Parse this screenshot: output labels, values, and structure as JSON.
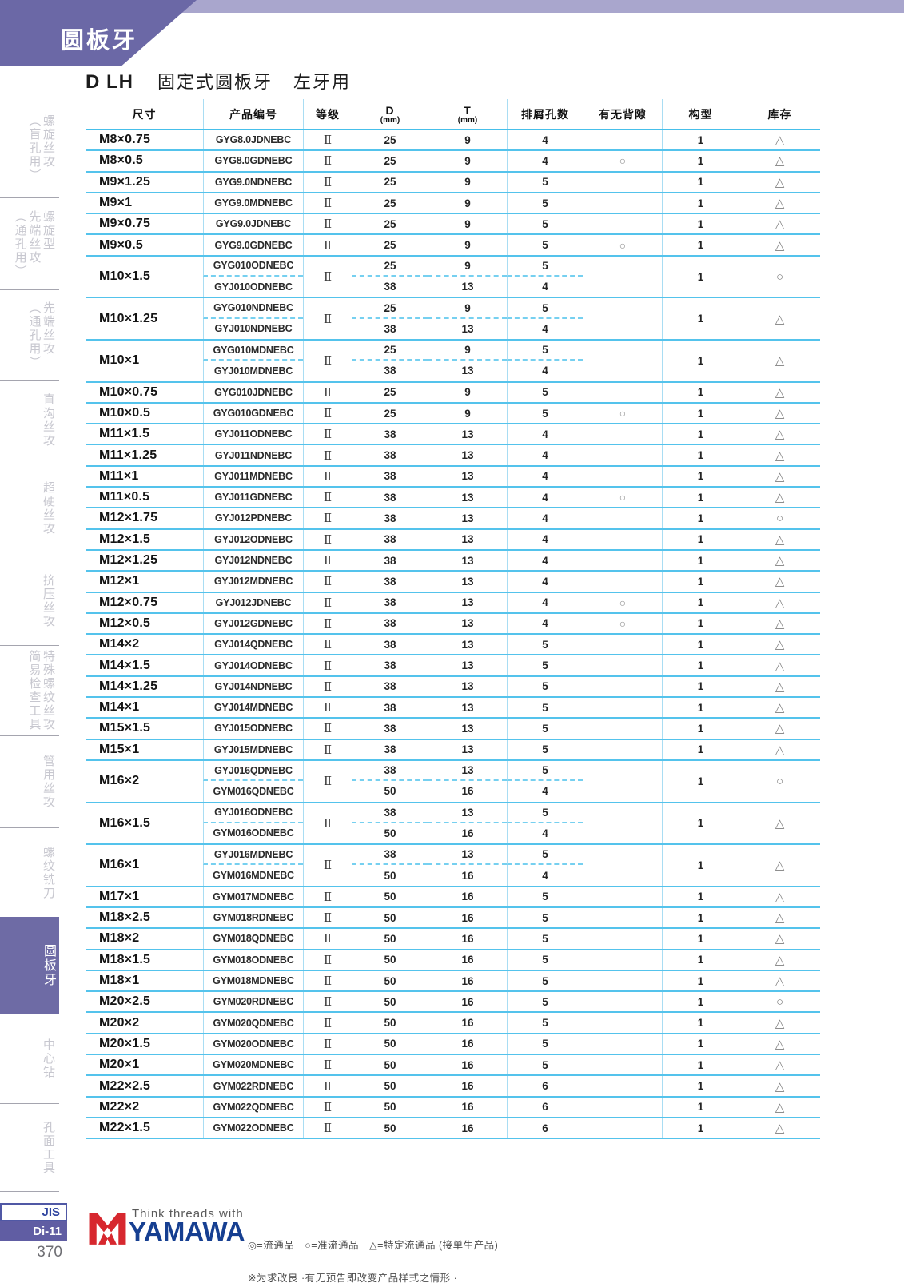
{
  "banner": {
    "tab_title": "圆板牙"
  },
  "page": {
    "title_code": "D LH",
    "title_main": "固定式圆板牙",
    "title_sub": "左牙用"
  },
  "table": {
    "headers": [
      {
        "label": "尺寸"
      },
      {
        "label": "产品编号"
      },
      {
        "label": "等级"
      },
      {
        "label": "D",
        "sub": "(mm)"
      },
      {
        "label": "T",
        "sub": "(mm)"
      },
      {
        "label": "排屑孔数"
      },
      {
        "label": "有无背隙"
      },
      {
        "label": "构型"
      },
      {
        "label": "库存"
      }
    ],
    "rows": [
      {
        "size": "M8×0.75",
        "codes": [
          "GYG8.0JDNEBC"
        ],
        "grade": "Ⅱ",
        "d": [
          "25"
        ],
        "t": [
          "9"
        ],
        "holes": [
          "4"
        ],
        "back": "",
        "config": "1",
        "stock": "△"
      },
      {
        "size": "M8×0.5",
        "codes": [
          "GYG8.0GDNEBC"
        ],
        "grade": "Ⅱ",
        "d": [
          "25"
        ],
        "t": [
          "9"
        ],
        "holes": [
          "4"
        ],
        "back": "○",
        "config": "1",
        "stock": "△"
      },
      {
        "size": "M9×1.25",
        "codes": [
          "GYG9.0NDNEBC"
        ],
        "grade": "Ⅱ",
        "d": [
          "25"
        ],
        "t": [
          "9"
        ],
        "holes": [
          "5"
        ],
        "back": "",
        "config": "1",
        "stock": "△"
      },
      {
        "size": "M9×1",
        "codes": [
          "GYG9.0MDNEBC"
        ],
        "grade": "Ⅱ",
        "d": [
          "25"
        ],
        "t": [
          "9"
        ],
        "holes": [
          "5"
        ],
        "back": "",
        "config": "1",
        "stock": "△"
      },
      {
        "size": "M9×0.75",
        "codes": [
          "GYG9.0JDNEBC"
        ],
        "grade": "Ⅱ",
        "d": [
          "25"
        ],
        "t": [
          "9"
        ],
        "holes": [
          "5"
        ],
        "back": "",
        "config": "1",
        "stock": "△"
      },
      {
        "size": "M9×0.5",
        "codes": [
          "GYG9.0GDNEBC"
        ],
        "grade": "Ⅱ",
        "d": [
          "25"
        ],
        "t": [
          "9"
        ],
        "holes": [
          "5"
        ],
        "back": "○",
        "config": "1",
        "stock": "△"
      },
      {
        "size": "M10×1.5",
        "codes": [
          "GYG010ODNEBC",
          "GYJ010ODNEBC"
        ],
        "grade": "Ⅱ",
        "d": [
          "25",
          "38"
        ],
        "t": [
          "9",
          "13"
        ],
        "holes": [
          "5",
          "4"
        ],
        "back": "",
        "config": "1",
        "stock": "○"
      },
      {
        "size": "M10×1.25",
        "codes": [
          "GYG010NDNEBC",
          "GYJ010NDNEBC"
        ],
        "grade": "Ⅱ",
        "d": [
          "25",
          "38"
        ],
        "t": [
          "9",
          "13"
        ],
        "holes": [
          "5",
          "4"
        ],
        "back": "",
        "config": "1",
        "stock": "△"
      },
      {
        "size": "M10×1",
        "codes": [
          "GYG010MDNEBC",
          "GYJ010MDNEBC"
        ],
        "grade": "Ⅱ",
        "d": [
          "25",
          "38"
        ],
        "t": [
          "9",
          "13"
        ],
        "holes": [
          "5",
          "4"
        ],
        "back": "",
        "config": "1",
        "stock": "△"
      },
      {
        "size": "M10×0.75",
        "codes": [
          "GYG010JDNEBC"
        ],
        "grade": "Ⅱ",
        "d": [
          "25"
        ],
        "t": [
          "9"
        ],
        "holes": [
          "5"
        ],
        "back": "",
        "config": "1",
        "stock": "△"
      },
      {
        "size": "M10×0.5",
        "codes": [
          "GYG010GDNEBC"
        ],
        "grade": "Ⅱ",
        "d": [
          "25"
        ],
        "t": [
          "9"
        ],
        "holes": [
          "5"
        ],
        "back": "○",
        "config": "1",
        "stock": "△"
      },
      {
        "size": "M11×1.5",
        "codes": [
          "GYJ011ODNEBC"
        ],
        "grade": "Ⅱ",
        "d": [
          "38"
        ],
        "t": [
          "13"
        ],
        "holes": [
          "4"
        ],
        "back": "",
        "config": "1",
        "stock": "△"
      },
      {
        "size": "M11×1.25",
        "codes": [
          "GYJ011NDNEBC"
        ],
        "grade": "Ⅱ",
        "d": [
          "38"
        ],
        "t": [
          "13"
        ],
        "holes": [
          "4"
        ],
        "back": "",
        "config": "1",
        "stock": "△"
      },
      {
        "size": "M11×1",
        "codes": [
          "GYJ011MDNEBC"
        ],
        "grade": "Ⅱ",
        "d": [
          "38"
        ],
        "t": [
          "13"
        ],
        "holes": [
          "4"
        ],
        "back": "",
        "config": "1",
        "stock": "△"
      },
      {
        "size": "M11×0.5",
        "codes": [
          "GYJ011GDNEBC"
        ],
        "grade": "Ⅱ",
        "d": [
          "38"
        ],
        "t": [
          "13"
        ],
        "holes": [
          "4"
        ],
        "back": "○",
        "config": "1",
        "stock": "△"
      },
      {
        "size": "M12×1.75",
        "codes": [
          "GYJ012PDNEBC"
        ],
        "grade": "Ⅱ",
        "d": [
          "38"
        ],
        "t": [
          "13"
        ],
        "holes": [
          "4"
        ],
        "back": "",
        "config": "1",
        "stock": "○"
      },
      {
        "size": "M12×1.5",
        "codes": [
          "GYJ012ODNEBC"
        ],
        "grade": "Ⅱ",
        "d": [
          "38"
        ],
        "t": [
          "13"
        ],
        "holes": [
          "4"
        ],
        "back": "",
        "config": "1",
        "stock": "△"
      },
      {
        "size": "M12×1.25",
        "codes": [
          "GYJ012NDNEBC"
        ],
        "grade": "Ⅱ",
        "d": [
          "38"
        ],
        "t": [
          "13"
        ],
        "holes": [
          "4"
        ],
        "back": "",
        "config": "1",
        "stock": "△"
      },
      {
        "size": "M12×1",
        "codes": [
          "GYJ012MDNEBC"
        ],
        "grade": "Ⅱ",
        "d": [
          "38"
        ],
        "t": [
          "13"
        ],
        "holes": [
          "4"
        ],
        "back": "",
        "config": "1",
        "stock": "△"
      },
      {
        "size": "M12×0.75",
        "codes": [
          "GYJ012JDNEBC"
        ],
        "grade": "Ⅱ",
        "d": [
          "38"
        ],
        "t": [
          "13"
        ],
        "holes": [
          "4"
        ],
        "back": "○",
        "config": "1",
        "stock": "△"
      },
      {
        "size": "M12×0.5",
        "codes": [
          "GYJ012GDNEBC"
        ],
        "grade": "Ⅱ",
        "d": [
          "38"
        ],
        "t": [
          "13"
        ],
        "holes": [
          "4"
        ],
        "back": "○",
        "config": "1",
        "stock": "△"
      },
      {
        "size": "M14×2",
        "codes": [
          "GYJ014QDNEBC"
        ],
        "grade": "Ⅱ",
        "d": [
          "38"
        ],
        "t": [
          "13"
        ],
        "holes": [
          "5"
        ],
        "back": "",
        "config": "1",
        "stock": "△"
      },
      {
        "size": "M14×1.5",
        "codes": [
          "GYJ014ODNEBC"
        ],
        "grade": "Ⅱ",
        "d": [
          "38"
        ],
        "t": [
          "13"
        ],
        "holes": [
          "5"
        ],
        "back": "",
        "config": "1",
        "stock": "△"
      },
      {
        "size": "M14×1.25",
        "codes": [
          "GYJ014NDNEBC"
        ],
        "grade": "Ⅱ",
        "d": [
          "38"
        ],
        "t": [
          "13"
        ],
        "holes": [
          "5"
        ],
        "back": "",
        "config": "1",
        "stock": "△"
      },
      {
        "size": "M14×1",
        "codes": [
          "GYJ014MDNEBC"
        ],
        "grade": "Ⅱ",
        "d": [
          "38"
        ],
        "t": [
          "13"
        ],
        "holes": [
          "5"
        ],
        "back": "",
        "config": "1",
        "stock": "△"
      },
      {
        "size": "M15×1.5",
        "codes": [
          "GYJ015ODNEBC"
        ],
        "grade": "Ⅱ",
        "d": [
          "38"
        ],
        "t": [
          "13"
        ],
        "holes": [
          "5"
        ],
        "back": "",
        "config": "1",
        "stock": "△"
      },
      {
        "size": "M15×1",
        "codes": [
          "GYJ015MDNEBC"
        ],
        "grade": "Ⅱ",
        "d": [
          "38"
        ],
        "t": [
          "13"
        ],
        "holes": [
          "5"
        ],
        "back": "",
        "config": "1",
        "stock": "△"
      },
      {
        "size": "M16×2",
        "codes": [
          "GYJ016QDNEBC",
          "GYM016QDNEBC"
        ],
        "grade": "Ⅱ",
        "d": [
          "38",
          "50"
        ],
        "t": [
          "13",
          "16"
        ],
        "holes": [
          "5",
          "4"
        ],
        "back": "",
        "config": "1",
        "stock": "○"
      },
      {
        "size": "M16×1.5",
        "codes": [
          "GYJ016ODNEBC",
          "GYM016ODNEBC"
        ],
        "grade": "Ⅱ",
        "d": [
          "38",
          "50"
        ],
        "t": [
          "13",
          "16"
        ],
        "holes": [
          "5",
          "4"
        ],
        "back": "",
        "config": "1",
        "stock": "△"
      },
      {
        "size": "M16×1",
        "codes": [
          "GYJ016MDNEBC",
          "GYM016MDNEBC"
        ],
        "grade": "Ⅱ",
        "d": [
          "38",
          "50"
        ],
        "t": [
          "13",
          "16"
        ],
        "holes": [
          "5",
          "4"
        ],
        "back": "",
        "config": "1",
        "stock": "△"
      },
      {
        "size": "M17×1",
        "codes": [
          "GYM017MDNEBC"
        ],
        "grade": "Ⅱ",
        "d": [
          "50"
        ],
        "t": [
          "16"
        ],
        "holes": [
          "5"
        ],
        "back": "",
        "config": "1",
        "stock": "△"
      },
      {
        "size": "M18×2.5",
        "codes": [
          "GYM018RDNEBC"
        ],
        "grade": "Ⅱ",
        "d": [
          "50"
        ],
        "t": [
          "16"
        ],
        "holes": [
          "5"
        ],
        "back": "",
        "config": "1",
        "stock": "△"
      },
      {
        "size": "M18×2",
        "codes": [
          "GYM018QDNEBC"
        ],
        "grade": "Ⅱ",
        "d": [
          "50"
        ],
        "t": [
          "16"
        ],
        "holes": [
          "5"
        ],
        "back": "",
        "config": "1",
        "stock": "△"
      },
      {
        "size": "M18×1.5",
        "codes": [
          "GYM018ODNEBC"
        ],
        "grade": "Ⅱ",
        "d": [
          "50"
        ],
        "t": [
          "16"
        ],
        "holes": [
          "5"
        ],
        "back": "",
        "config": "1",
        "stock": "△"
      },
      {
        "size": "M18×1",
        "codes": [
          "GYM018MDNEBC"
        ],
        "grade": "Ⅱ",
        "d": [
          "50"
        ],
        "t": [
          "16"
        ],
        "holes": [
          "5"
        ],
        "back": "",
        "config": "1",
        "stock": "△"
      },
      {
        "size": "M20×2.5",
        "codes": [
          "GYM020RDNEBC"
        ],
        "grade": "Ⅱ",
        "d": [
          "50"
        ],
        "t": [
          "16"
        ],
        "holes": [
          "5"
        ],
        "back": "",
        "config": "1",
        "stock": "○"
      },
      {
        "size": "M20×2",
        "codes": [
          "GYM020QDNEBC"
        ],
        "grade": "Ⅱ",
        "d": [
          "50"
        ],
        "t": [
          "16"
        ],
        "holes": [
          "5"
        ],
        "back": "",
        "config": "1",
        "stock": "△"
      },
      {
        "size": "M20×1.5",
        "codes": [
          "GYM020ODNEBC"
        ],
        "grade": "Ⅱ",
        "d": [
          "50"
        ],
        "t": [
          "16"
        ],
        "holes": [
          "5"
        ],
        "back": "",
        "config": "1",
        "stock": "△"
      },
      {
        "size": "M20×1",
        "codes": [
          "GYM020MDNEBC"
        ],
        "grade": "Ⅱ",
        "d": [
          "50"
        ],
        "t": [
          "16"
        ],
        "holes": [
          "5"
        ],
        "back": "",
        "config": "1",
        "stock": "△"
      },
      {
        "size": "M22×2.5",
        "codes": [
          "GYM022RDNEBC"
        ],
        "grade": "Ⅱ",
        "d": [
          "50"
        ],
        "t": [
          "16"
        ],
        "holes": [
          "6"
        ],
        "back": "",
        "config": "1",
        "stock": "△"
      },
      {
        "size": "M22×2",
        "codes": [
          "GYM022QDNEBC"
        ],
        "grade": "Ⅱ",
        "d": [
          "50"
        ],
        "t": [
          "16"
        ],
        "holes": [
          "6"
        ],
        "back": "",
        "config": "1",
        "stock": "△"
      },
      {
        "size": "M22×1.5",
        "codes": [
          "GYM022ODNEBC"
        ],
        "grade": "Ⅱ",
        "d": [
          "50"
        ],
        "t": [
          "16"
        ],
        "holes": [
          "6"
        ],
        "back": "",
        "config": "1",
        "stock": "△"
      }
    ]
  },
  "sidebar": {
    "items": [
      {
        "text": "螺旋丝攻\n（盲孔用）",
        "active": false
      },
      {
        "text": "螺旋型\n先端丝攻\n（通孔用）",
        "active": false
      },
      {
        "text": "先端丝攻\n（通孔用）",
        "active": false
      },
      {
        "text": "直沟丝攻",
        "active": false
      },
      {
        "text": "超硬丝攻",
        "active": false
      },
      {
        "text": "挤压丝攻",
        "active": false
      },
      {
        "text": "特殊螺纹丝攻\n简易检查工具",
        "active": false
      },
      {
        "text": "管用丝攻",
        "active": false
      },
      {
        "text": "螺纹铣刀",
        "active": false
      },
      {
        "text": "圆板牙",
        "active": true
      },
      {
        "text": "中心钻",
        "active": false
      },
      {
        "text": "孔面工具",
        "active": false
      }
    ]
  },
  "footer": {
    "jis_label": "JIS",
    "page_code": "Di-11",
    "page_number": "370",
    "brand_tagline": "Think threads with",
    "brand_name": "YAMAWA",
    "legend_line1": "◎=流通品　○=准流通品　△=特定流通品 (接单生产品)",
    "legend_line2": "※为求改良 ·有无预告即改变产品样式之情形 ·"
  },
  "colors": {
    "banner_purple": "#6b68a6",
    "band_purple": "#a9a6cd",
    "table_line_blue": "#54c3ec",
    "brand_blue": "#163f91",
    "brand_red": "#d7282f"
  }
}
